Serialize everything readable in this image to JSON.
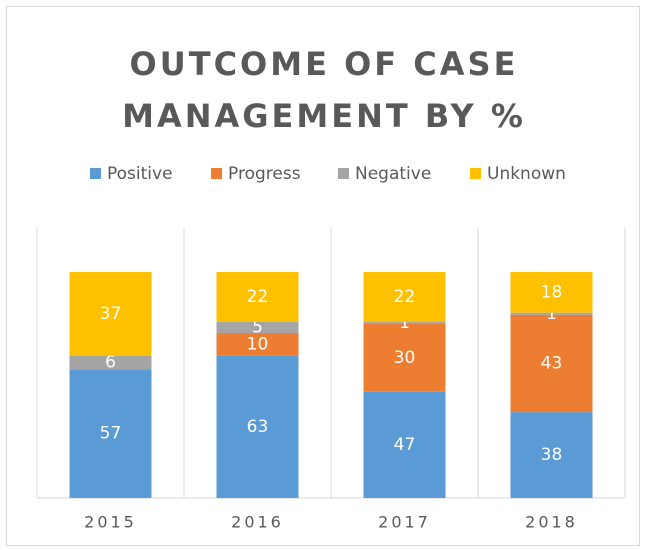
{
  "chart_data": {
    "type": "stacked_bar",
    "title": "OUTCOME OF CASE MANAGEMENT BY %",
    "categories": [
      "2015",
      "2016",
      "2017",
      "2018"
    ],
    "series": [
      {
        "name": "Positive",
        "color": "#5b9bd5",
        "values": [
          57,
          63,
          47,
          38
        ]
      },
      {
        "name": "Progress",
        "color": "#ed7d31",
        "values": [
          null,
          10,
          30,
          43
        ]
      },
      {
        "name": "Negative",
        "color": "#a5a5a5",
        "values": [
          6,
          5,
          1,
          1
        ]
      },
      {
        "name": "Unknown",
        "color": "#ffc000",
        "values": [
          37,
          22,
          22,
          18
        ]
      }
    ],
    "ylim": [
      0,
      100
    ],
    "legend": "top"
  }
}
